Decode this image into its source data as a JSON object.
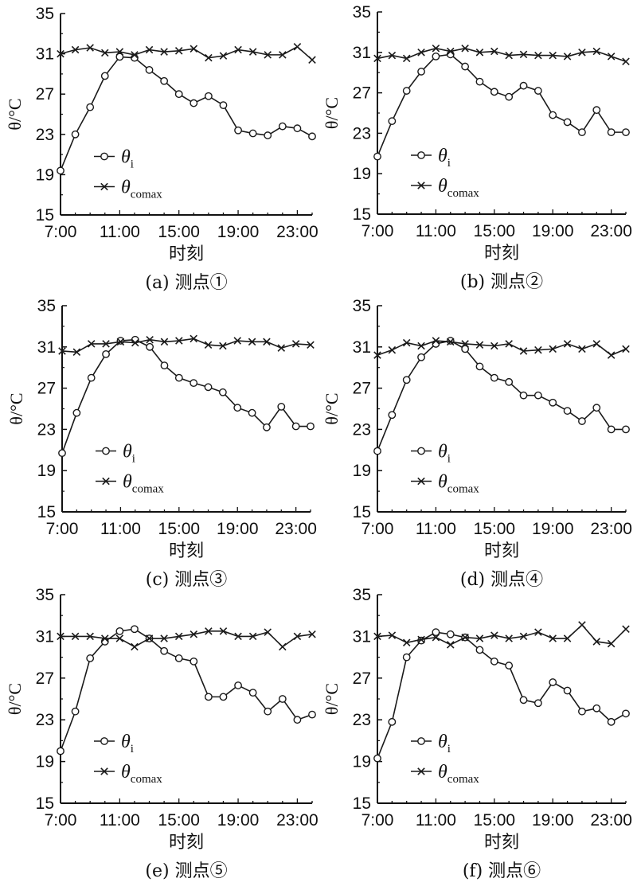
{
  "figure": {
    "colors": {
      "line": "#1a1a1a",
      "axis": "#111111",
      "background": "#ffffff"
    }
  },
  "chart_data": [
    {
      "type": "line",
      "caption": "(a) 测点①",
      "xlabel": "时刻",
      "ylabel": "θ/°C",
      "x_ticks": [
        "7:00",
        "11:00",
        "15:00",
        "19:00",
        "23:00"
      ],
      "xlim": [
        7,
        24
      ],
      "ylim": [
        15,
        35
      ],
      "y_ticks": [
        15,
        19,
        23,
        27,
        31,
        35
      ],
      "legend_position": "middle-left",
      "x": [
        7,
        8,
        9,
        10,
        11,
        12,
        13,
        14,
        15,
        16,
        17,
        18,
        19,
        20,
        21,
        22,
        23,
        24
      ],
      "series": [
        {
          "name": "θ",
          "subscript": "i",
          "marker": "circle",
          "values": [
            19.4,
            23.0,
            25.7,
            28.8,
            30.7,
            30.6,
            29.4,
            28.3,
            27.0,
            26.1,
            26.8,
            25.9,
            23.4,
            23.1,
            22.9,
            23.8,
            23.6,
            22.8
          ]
        },
        {
          "name": "θ",
          "subscript": "comax",
          "marker": "cross",
          "values": [
            31.0,
            31.4,
            31.6,
            31.1,
            31.2,
            30.9,
            31.4,
            31.2,
            31.3,
            31.5,
            30.6,
            30.8,
            31.4,
            31.2,
            30.9,
            30.9,
            31.7,
            30.4
          ]
        }
      ]
    },
    {
      "type": "line",
      "caption": "(b) 测点②",
      "xlabel": "时刻",
      "ylabel": "θ/°C",
      "x_ticks": [
        "7:00",
        "11:00",
        "15:00",
        "19:00",
        "23:00"
      ],
      "xlim": [
        7,
        24
      ],
      "ylim": [
        15,
        35
      ],
      "y_ticks": [
        15,
        19,
        23,
        27,
        31,
        35
      ],
      "legend_position": "middle-left",
      "x": [
        7,
        8,
        9,
        10,
        11,
        12,
        13,
        14,
        15,
        16,
        17,
        18,
        19,
        20,
        21,
        22,
        23,
        24
      ],
      "series": [
        {
          "name": "θ",
          "subscript": "i",
          "marker": "circle",
          "values": [
            20.7,
            24.2,
            27.2,
            29.1,
            30.6,
            30.8,
            29.6,
            28.1,
            27.1,
            26.6,
            27.7,
            27.2,
            24.8,
            24.1,
            23.1,
            25.3,
            23.1,
            23.1
          ]
        },
        {
          "name": "θ",
          "subscript": "comax",
          "marker": "cross",
          "values": [
            30.4,
            30.7,
            30.4,
            31.0,
            31.4,
            31.1,
            31.4,
            31.0,
            31.1,
            30.7,
            30.8,
            30.7,
            30.7,
            30.6,
            31.0,
            31.1,
            30.6,
            30.1
          ]
        }
      ]
    },
    {
      "type": "line",
      "caption": "(c) 测点③",
      "xlabel": "时刻",
      "ylabel": "θ/°C",
      "x_ticks": [
        "7:00",
        "11:00",
        "15:00",
        "19:00",
        "23:00"
      ],
      "xlim": [
        7,
        24
      ],
      "ylim": [
        15,
        35
      ],
      "y_ticks": [
        15,
        19,
        23,
        27,
        31,
        35
      ],
      "legend_position": "middle-left",
      "x": [
        7,
        8,
        9,
        10,
        11,
        12,
        13,
        14,
        15,
        16,
        17,
        18,
        19,
        20,
        21,
        22,
        23,
        24
      ],
      "series": [
        {
          "name": "θ",
          "subscript": "i",
          "marker": "circle",
          "values": [
            20.7,
            24.6,
            28.0,
            30.3,
            31.6,
            31.7,
            31.0,
            29.2,
            28.0,
            27.5,
            27.1,
            26.6,
            25.1,
            24.6,
            23.2,
            25.2,
            23.3,
            23.3
          ]
        },
        {
          "name": "θ",
          "subscript": "comax",
          "marker": "cross",
          "values": [
            30.6,
            30.5,
            31.3,
            31.3,
            31.5,
            31.4,
            31.7,
            31.5,
            31.6,
            31.8,
            31.2,
            31.1,
            31.6,
            31.5,
            31.5,
            30.9,
            31.3,
            31.2
          ]
        }
      ]
    },
    {
      "type": "line",
      "caption": "(d) 测点④",
      "xlabel": "时刻",
      "ylabel": "θ/°C",
      "x_ticks": [
        "7:00",
        "11:00",
        "15:00",
        "19:00",
        "23:00"
      ],
      "xlim": [
        7,
        24
      ],
      "ylim": [
        15,
        35
      ],
      "y_ticks": [
        15,
        19,
        23,
        27,
        31,
        35
      ],
      "legend_position": "middle-left",
      "x": [
        7,
        8,
        9,
        10,
        11,
        12,
        13,
        14,
        15,
        16,
        17,
        18,
        19,
        20,
        21,
        22,
        23,
        24
      ],
      "series": [
        {
          "name": "θ",
          "subscript": "i",
          "marker": "circle",
          "values": [
            20.9,
            24.4,
            27.8,
            30.0,
            31.3,
            31.6,
            30.8,
            29.1,
            28.0,
            27.6,
            26.3,
            26.3,
            25.6,
            24.8,
            23.8,
            25.1,
            23.0,
            23.0
          ]
        },
        {
          "name": "θ",
          "subscript": "comax",
          "marker": "cross",
          "values": [
            30.2,
            30.7,
            31.4,
            31.1,
            31.6,
            31.5,
            31.3,
            31.2,
            31.1,
            31.3,
            30.6,
            30.7,
            30.8,
            31.3,
            30.8,
            31.3,
            30.2,
            30.8
          ]
        }
      ]
    },
    {
      "type": "line",
      "caption": "(e) 测点⑤",
      "xlabel": "时刻",
      "ylabel": "θ/°C",
      "x_ticks": [
        "7:00",
        "11:00",
        "15:00",
        "19:00",
        "23:00"
      ],
      "xlim": [
        7,
        24
      ],
      "ylim": [
        15,
        35
      ],
      "y_ticks": [
        15,
        19,
        23,
        27,
        31,
        35
      ],
      "legend_position": "middle-left",
      "x": [
        7,
        8,
        9,
        10,
        11,
        12,
        13,
        14,
        15,
        16,
        17,
        18,
        19,
        20,
        21,
        22,
        23,
        24
      ],
      "series": [
        {
          "name": "θ",
          "subscript": "i",
          "marker": "circle",
          "values": [
            20.0,
            23.8,
            28.9,
            30.5,
            31.5,
            31.7,
            30.8,
            29.6,
            28.9,
            28.6,
            25.2,
            25.2,
            26.3,
            25.6,
            23.8,
            25.0,
            23.0,
            23.5
          ]
        },
        {
          "name": "θ",
          "subscript": "comax",
          "marker": "cross",
          "values": [
            31.0,
            31.0,
            31.0,
            30.8,
            30.8,
            30.0,
            30.8,
            30.8,
            31.0,
            31.2,
            31.5,
            31.5,
            31.0,
            31.0,
            31.4,
            30.0,
            31.0,
            31.2
          ]
        }
      ]
    },
    {
      "type": "line",
      "caption": "(f) 测点⑥",
      "xlabel": "时刻",
      "ylabel": "θ/°C",
      "x_ticks": [
        "7:00",
        "11:00",
        "15:00",
        "19:00",
        "23:00"
      ],
      "xlim": [
        7,
        24
      ],
      "ylim": [
        15,
        35
      ],
      "y_ticks": [
        15,
        19,
        23,
        27,
        31,
        35
      ],
      "legend_position": "middle-left",
      "x": [
        7,
        8,
        9,
        10,
        11,
        12,
        13,
        14,
        15,
        16,
        17,
        18,
        19,
        20,
        21,
        22,
        23,
        24
      ],
      "series": [
        {
          "name": "θ",
          "subscript": "i",
          "marker": "circle",
          "values": [
            19.3,
            22.8,
            29.0,
            30.6,
            31.4,
            31.2,
            30.9,
            29.7,
            28.6,
            28.2,
            24.9,
            24.6,
            26.6,
            25.8,
            23.8,
            24.1,
            22.8,
            23.6
          ]
        },
        {
          "name": "θ",
          "subscript": "comax",
          "marker": "cross",
          "values": [
            31.0,
            31.1,
            30.4,
            30.7,
            30.9,
            30.2,
            30.9,
            30.8,
            31.1,
            30.8,
            31.0,
            31.4,
            30.8,
            30.8,
            32.1,
            30.5,
            30.3,
            31.7
          ]
        }
      ]
    }
  ]
}
